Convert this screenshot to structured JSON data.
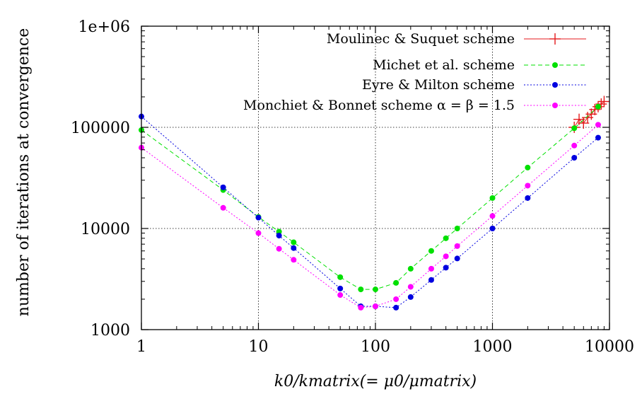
{
  "chart_data": {
    "type": "line",
    "xscale": "log",
    "yscale": "log",
    "xlim": [
      1,
      10000
    ],
    "ylim": [
      1000,
      1000000
    ],
    "grid": true,
    "legend_position": "top-right",
    "xlabel": "k0/kmatrix(= μ0/μmatrix)",
    "ylabel": "number of iterations at convergence",
    "x_ticks": [
      {
        "value": 1,
        "label": "1"
      },
      {
        "value": 10,
        "label": "10"
      },
      {
        "value": 100,
        "label": "100"
      },
      {
        "value": 1000,
        "label": "1000"
      },
      {
        "value": 10000,
        "label": "10000"
      }
    ],
    "y_ticks": [
      {
        "value": 1000,
        "label": "1000"
      },
      {
        "value": 10000,
        "label": "10000"
      },
      {
        "value": 100000,
        "label": "100000"
      },
      {
        "value": 1000000,
        "label": "1e+06"
      }
    ],
    "series": [
      {
        "name": "Moulinec & Suquet scheme",
        "color": "#e41a1c",
        "marker": "plus",
        "line": "solid",
        "x": [
          5000,
          5500,
          6000,
          6500,
          7000,
          7500,
          8000,
          8500,
          9000
        ],
        "y": [
          100000,
          120000,
          110000,
          125000,
          135000,
          150000,
          160000,
          170000,
          180000
        ]
      },
      {
        "name": "Michet et al. scheme",
        "color": "#00e000",
        "marker": "circle",
        "line": "dashed",
        "x": [
          1,
          5,
          10,
          15,
          20,
          50,
          75,
          100,
          150,
          200,
          300,
          400,
          500,
          1000,
          2000,
          5000,
          8000
        ],
        "y": [
          94000,
          24000,
          13000,
          9300,
          7300,
          3300,
          2500,
          2500,
          2900,
          4000,
          6000,
          8000,
          10000,
          20000,
          40000,
          98000,
          160000
        ]
      },
      {
        "name": "Eyre & Milton scheme",
        "color": "#0000e0",
        "marker": "circle",
        "line": "dotted",
        "x": [
          1,
          5,
          10,
          15,
          20,
          50,
          75,
          100,
          150,
          200,
          300,
          400,
          500,
          1000,
          2000,
          5000,
          8000
        ],
        "y": [
          128000,
          25500,
          12800,
          8500,
          6400,
          2550,
          1700,
          1700,
          1650,
          2100,
          3100,
          4100,
          5050,
          10000,
          20000,
          50000,
          79000
        ]
      },
      {
        "name": "Monchiet & Bonnet scheme α = β = 1.5",
        "color": "#ff00ff",
        "marker": "circle",
        "line": "dotted",
        "x": [
          1,
          5,
          10,
          15,
          20,
          50,
          75,
          100,
          150,
          200,
          300,
          400,
          500,
          1000,
          2000,
          5000,
          8000
        ],
        "y": [
          63000,
          16000,
          9000,
          6300,
          4900,
          2200,
          1650,
          1700,
          2000,
          2650,
          4000,
          5300,
          6700,
          13300,
          26500,
          66000,
          106000
        ]
      }
    ]
  }
}
